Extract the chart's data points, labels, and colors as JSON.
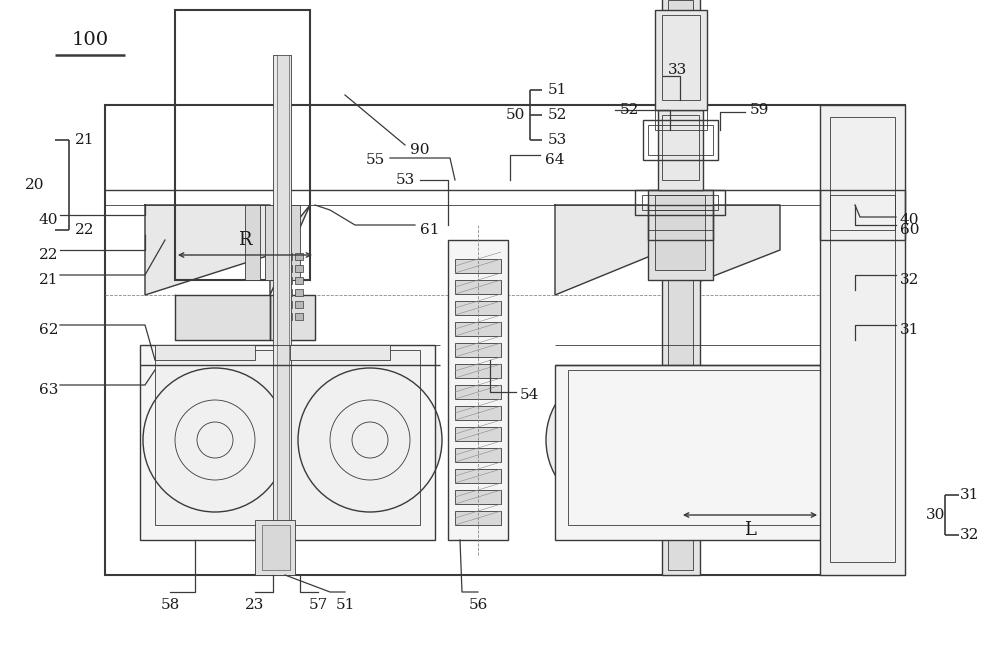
{
  "bg_color": "#ffffff",
  "line_color": "#3a3a3a",
  "fig_width": 10.0,
  "fig_height": 6.7,
  "dpi": 100
}
